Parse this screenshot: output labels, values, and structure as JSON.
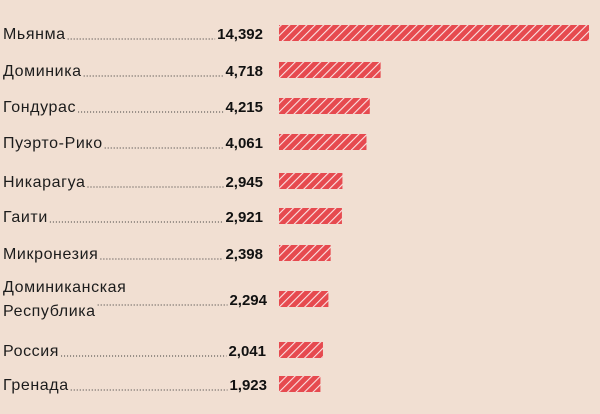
{
  "chart_data": {
    "type": "bar",
    "orientation": "horizontal",
    "title": "",
    "xlabel": "",
    "ylabel": "",
    "categories": [
      [
        "Мьянма"
      ],
      [
        "Доминика"
      ],
      [
        "Гондурас"
      ],
      [
        "Пуэрто-Рико"
      ],
      [
        "Никарагуа"
      ],
      [
        "Гаити"
      ],
      [
        "Микронезия"
      ],
      [
        "Доминиканская",
        "Республика"
      ],
      [
        "Россия"
      ],
      [
        "Гренада"
      ]
    ],
    "values": [
      14392,
      4718,
      4215,
      4061,
      2945,
      2921,
      2398,
      2294,
      2041,
      1923
    ],
    "value_labels": [
      "14,392",
      "4,718",
      "4,215",
      "4,061",
      "2,945",
      "2,921",
      "2,398",
      "2,294",
      "2,041",
      "1,923"
    ],
    "xlim": [
      0,
      14392
    ],
    "grid": false,
    "legend": "none",
    "colors": {
      "background": "#f1dfd2",
      "bar": "#e64a4f",
      "bar_hatch": "#ffffff",
      "text": "#1c1c1c"
    }
  }
}
